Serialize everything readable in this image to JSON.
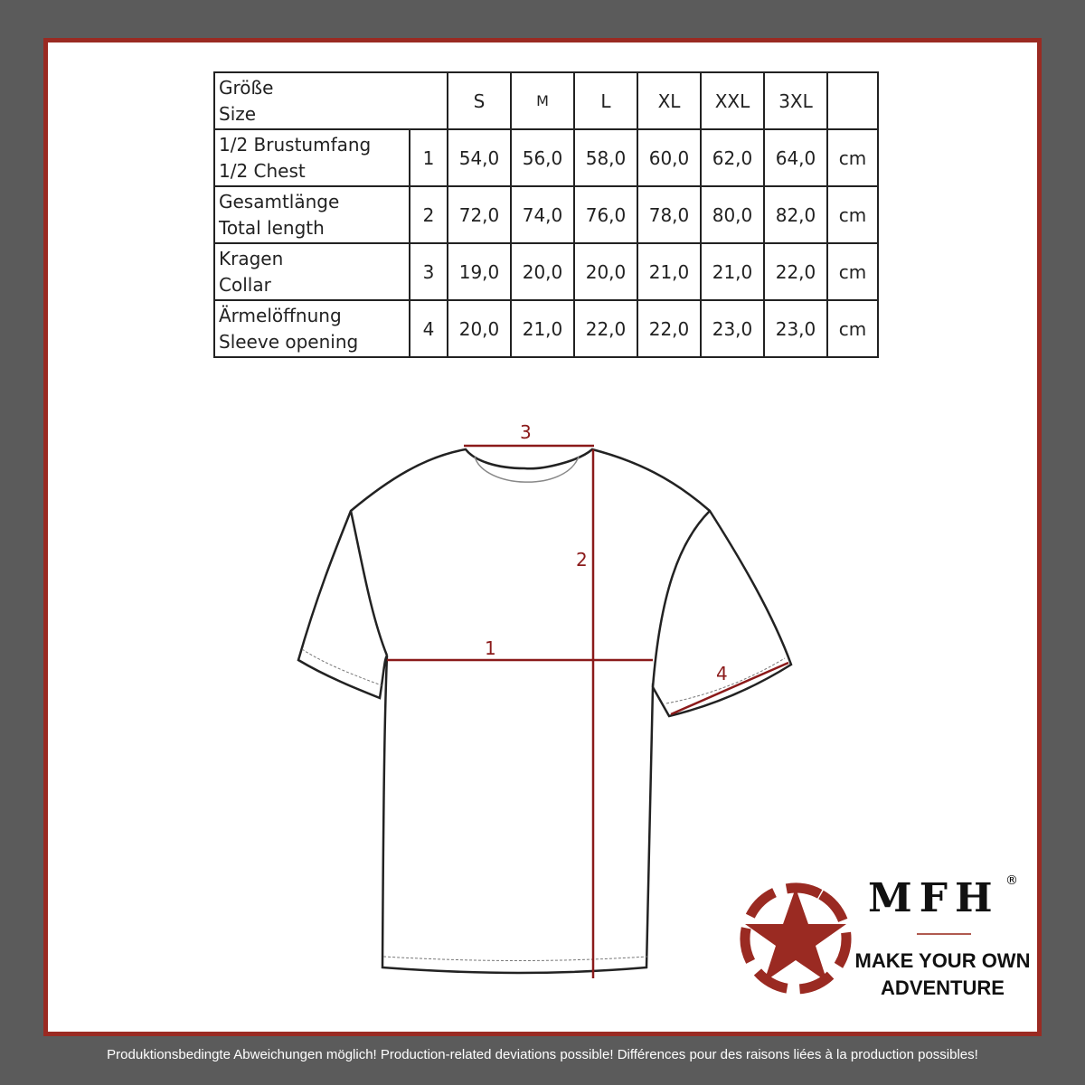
{
  "table": {
    "header": {
      "label_de": "Größe",
      "label_en": "Size",
      "sizes": [
        "S",
        "M",
        "L",
        "XL",
        "XXL",
        "3XL"
      ]
    },
    "rows": [
      {
        "de": "1/2 Brustumfang",
        "en": "1/2 Chest",
        "num": "1",
        "values": [
          "54,0",
          "56,0",
          "58,0",
          "60,0",
          "62,0",
          "64,0"
        ],
        "unit": "cm"
      },
      {
        "de": "Gesamtlänge",
        "en": "Total length",
        "num": "2",
        "values": [
          "72,0",
          "74,0",
          "76,0",
          "78,0",
          "80,0",
          "82,0"
        ],
        "unit": "cm"
      },
      {
        "de": "Kragen",
        "en": "Collar",
        "num": "3",
        "values": [
          "19,0",
          "20,0",
          "20,0",
          "21,0",
          "21,0",
          "22,0"
        ],
        "unit": "cm"
      },
      {
        "de": "Ärmelöffnung",
        "en": "Sleeve opening",
        "num": "4",
        "values": [
          "20,0",
          "21,0",
          "22,0",
          "22,0",
          "23,0",
          "23,0"
        ],
        "unit": "cm"
      }
    ]
  },
  "diagram": {
    "markers": [
      "1",
      "2",
      "3",
      "4"
    ],
    "measure_color": "#8b1a1a"
  },
  "logo": {
    "brand": "MFH",
    "registered": "®",
    "tagline_1": "MAKE YOUR OWN",
    "tagline_2": "ADVENTURE",
    "color": "#9a2a22"
  },
  "footer": "Produktionsbedingte Abweichungen möglich! Production-related deviations possible! Différences pour des raisons liées à la production possibles!"
}
